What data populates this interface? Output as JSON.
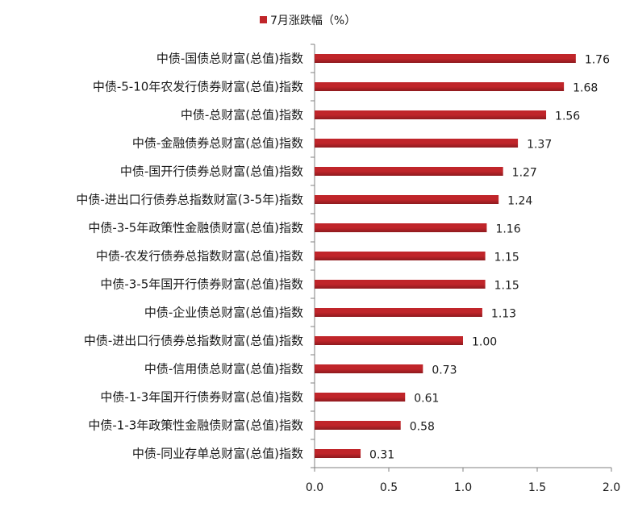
{
  "chart_data": {
    "type": "bar",
    "orientation": "horizontal",
    "legend": {
      "position": "top",
      "label": "7月涨跌幅（%）"
    },
    "categories": [
      "中债-国债总财富(总值)指数",
      "中债-5-10年农发行债券财富(总值)指数",
      "中债-总财富(总值)指数",
      "中债-金融债券总财富(总值)指数",
      "中债-国开行债券总财富(总值)指数",
      "中债-进出口行债券总指数财富(3-5年)指数",
      "中债-3-5年政策性金融债财富(总值)指数",
      "中债-农发行债券总指数财富(总值)指数",
      "中债-3-5年国开行债券财富(总值)指数",
      "中债-企业债总财富(总值)指数",
      "中债-进出口行债券总指数财富(总值)指数",
      "中债-信用债总财富(总值)指数",
      "中债-1-3年国开行债券财富(总值)指数",
      "中债-1-3年政策性金融债财富(总值)指数",
      "中债-同业存单总财富(总值)指数"
    ],
    "values": [
      1.76,
      1.68,
      1.56,
      1.37,
      1.27,
      1.24,
      1.16,
      1.15,
      1.15,
      1.13,
      1.0,
      0.73,
      0.61,
      0.58,
      0.31
    ],
    "value_labels": [
      "1.76",
      "1.68",
      "1.56",
      "1.37",
      "1.27",
      "1.24",
      "1.16",
      "1.15",
      "1.15",
      "1.13",
      "1.00",
      "0.73",
      "0.61",
      "0.58",
      "0.31"
    ],
    "xlim": [
      0,
      2.0
    ],
    "xticks": [
      0,
      0.5,
      1.0,
      1.5,
      2.0
    ],
    "xtick_labels": [
      "0.0",
      "0.5",
      "1.0",
      "1.5",
      "2.0"
    ],
    "grid": false,
    "colors": {
      "bar": "#C0252A",
      "bar_dark": "#8E1A1E",
      "axis": "#808080"
    }
  }
}
